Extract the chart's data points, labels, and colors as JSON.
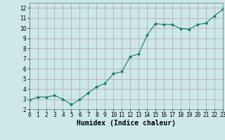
{
  "x": [
    0,
    1,
    2,
    3,
    4,
    5,
    6,
    7,
    8,
    9,
    10,
    11,
    12,
    13,
    14,
    15,
    16,
    17,
    18,
    19,
    20,
    21,
    22,
    23
  ],
  "y": [
    2.9,
    3.2,
    3.2,
    3.35,
    3.0,
    2.45,
    2.95,
    3.6,
    4.2,
    4.55,
    5.5,
    5.7,
    7.2,
    7.45,
    9.3,
    10.45,
    10.35,
    10.35,
    9.95,
    9.9,
    10.35,
    10.5,
    11.2,
    11.85
  ],
  "line_color": "#1a7a6a",
  "marker": "D",
  "marker_size": 2.0,
  "line_width": 0.8,
  "xlabel": "Humidex (Indice chaleur)",
  "xlim": [
    0,
    23
  ],
  "ylim": [
    2.0,
    12.5
  ],
  "yticks": [
    2,
    3,
    4,
    5,
    6,
    7,
    8,
    9,
    10,
    11,
    12
  ],
  "xticks": [
    0,
    1,
    2,
    3,
    4,
    5,
    6,
    7,
    8,
    9,
    10,
    11,
    12,
    13,
    14,
    15,
    16,
    17,
    18,
    19,
    20,
    21,
    22,
    23
  ],
  "bg_color": "#cce8e8",
  "grid_color": "#b8a0a0",
  "tick_label_fontsize": 5.5,
  "xlabel_fontsize": 7.0
}
